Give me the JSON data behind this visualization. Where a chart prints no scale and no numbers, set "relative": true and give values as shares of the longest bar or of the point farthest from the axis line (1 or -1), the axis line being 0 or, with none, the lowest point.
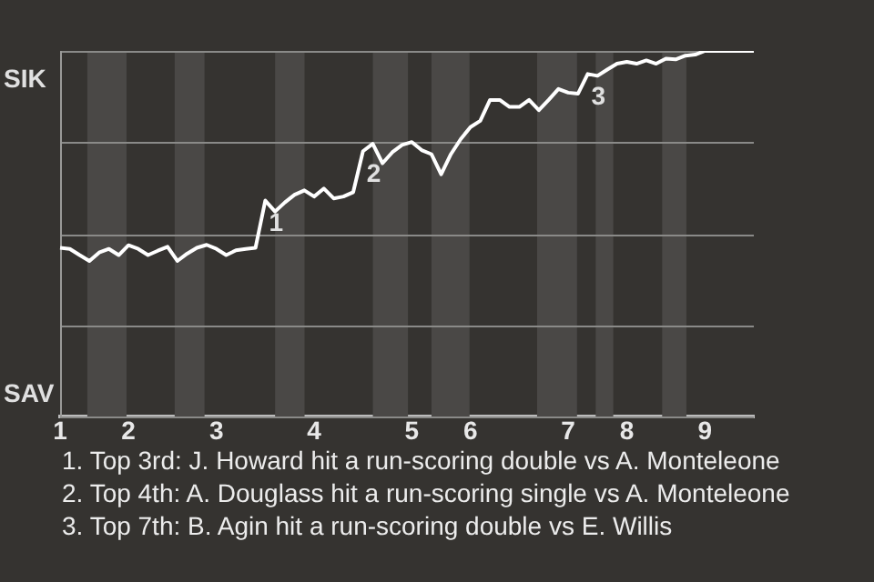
{
  "chart_data": {
    "type": "line",
    "relative": true,
    "color": "#ffffff",
    "grid": "y",
    "legend": false,
    "marker": "none",
    "categories": [
      "1",
      null,
      null,
      null,
      null,
      null,
      null,
      "2",
      null,
      null,
      null,
      null,
      null,
      null,
      null,
      null,
      "3",
      null,
      null,
      null,
      null,
      null,
      null,
      null,
      null,
      null,
      "4",
      null,
      null,
      null,
      null,
      null,
      null,
      null,
      null,
      null,
      "5",
      null,
      null,
      null,
      null,
      null,
      "6",
      null,
      null,
      null,
      null,
      null,
      null,
      null,
      null,
      null,
      "7",
      null,
      null,
      null,
      null,
      null,
      "8",
      null,
      null,
      null,
      null,
      null,
      null,
      null,
      "9",
      null,
      null,
      null,
      null,
      null
    ],
    "values": [
      0.462,
      0.459,
      0.442,
      0.426,
      0.449,
      0.459,
      0.442,
      0.469,
      0.459,
      0.442,
      0.454,
      0.465,
      0.426,
      0.446,
      0.462,
      0.47,
      0.459,
      0.442,
      0.455,
      0.459,
      0.462,
      0.591,
      0.561,
      0.586,
      0.607,
      0.619,
      0.602,
      0.624,
      0.597,
      0.602,
      0.614,
      0.726,
      0.746,
      0.693,
      0.723,
      0.743,
      0.751,
      0.729,
      0.718,
      0.663,
      0.718,
      0.759,
      0.792,
      0.809,
      0.866,
      0.866,
      0.847,
      0.847,
      0.866,
      0.838,
      0.866,
      0.896,
      0.886,
      0.883,
      0.937,
      0.932,
      0.949,
      0.965,
      0.97,
      0.965,
      0.974,
      0.965,
      0.979,
      0.977,
      0.987,
      0.99,
      1,
      1,
      1,
      1,
      1,
      1
    ],
    "annotations": [
      {
        "text": "1",
        "y": 0.591
      },
      {
        "text": "2",
        "y": 0.726
      },
      {
        "text": "3",
        "y": 0.937
      },
      "SIK",
      "SAV",
      "1. Top 3rd: J. Howard hit a run-scoring double vs A. Monteleone",
      "2. Top 4th: A. Douglass hit a run-scoring single vs A. Monteleone",
      "3. Top 7th: B. Agin hit a run-scoring double vs E. Willis"
    ]
  }
}
